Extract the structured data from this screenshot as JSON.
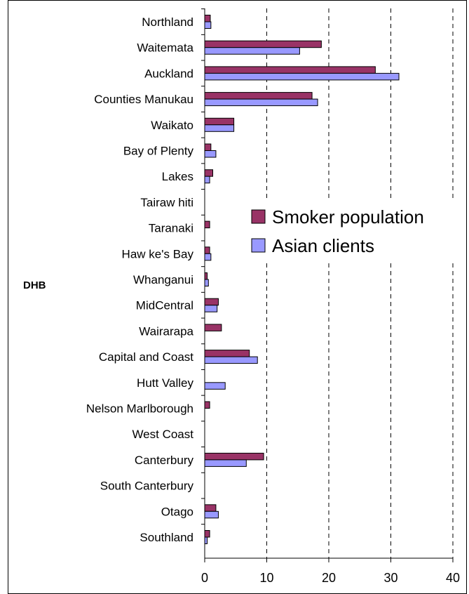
{
  "chart_data": {
    "type": "bar",
    "orientation": "horizontal",
    "ylabel": "DHB",
    "xlabel": "",
    "categories": [
      "Northland",
      "Waitemata",
      "Auckland",
      "Counties Manukau",
      "Waikato",
      "Bay of Plenty",
      "Lakes",
      "Tairaw hiti",
      "Taranaki",
      "Haw ke's Bay",
      "Whanganui",
      "MidCentral",
      "Wairarapa",
      "Capital and Coast",
      "Hutt Valley",
      "Nelson Marlborough",
      "West Coast",
      "Canterbury",
      "South Canterbury",
      "Otago",
      "Southland"
    ],
    "series": [
      {
        "name": "Smoker population",
        "color": "#993366",
        "values": [
          0.9,
          18.8,
          27.5,
          17.3,
          4.7,
          1.0,
          1.3,
          0.0,
          0.8,
          0.8,
          0.4,
          2.2,
          2.7,
          7.2,
          0.0,
          0.8,
          0.0,
          9.5,
          0.0,
          1.8,
          0.8
        ]
      },
      {
        "name": "Asian clients",
        "color": "#9999FF",
        "values": [
          1.0,
          15.3,
          31.3,
          18.2,
          4.7,
          1.8,
          0.8,
          0.0,
          0.0,
          1.0,
          0.6,
          2.0,
          0.0,
          8.5,
          3.3,
          0.0,
          0.0,
          6.7,
          0.0,
          2.2,
          0.4
        ]
      }
    ],
    "xlim": [
      0,
      40
    ],
    "xticks": [
      "0",
      "10",
      "20",
      "30",
      "40"
    ],
    "gridlines": "vertical-dashed",
    "legend_position": "right-middle"
  }
}
